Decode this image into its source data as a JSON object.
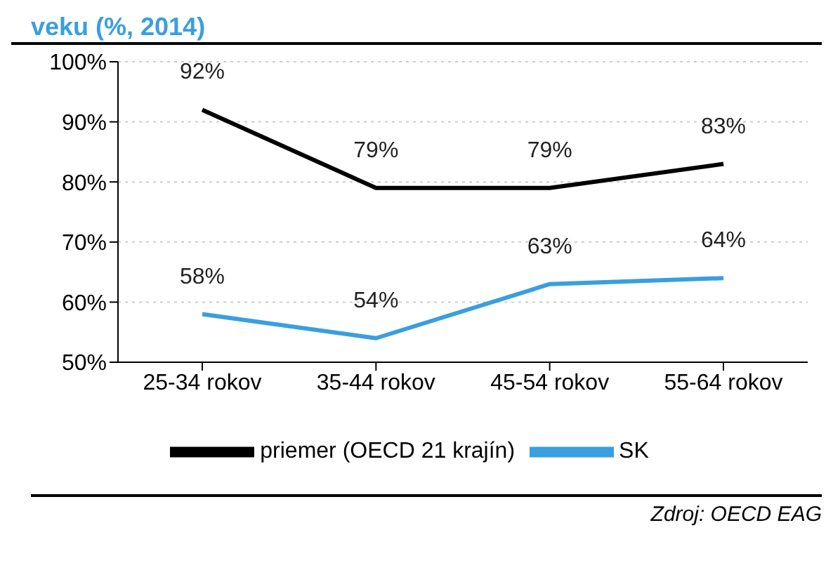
{
  "chart_data": {
    "type": "line",
    "title": "veku (%, 2014)",
    "categories": [
      "25-34 rokov",
      "35-44 rokov",
      "45-54 rokov",
      "55-64 rokov"
    ],
    "series": [
      {
        "name": "priemer (OECD 21 krajín)",
        "color": "#000000",
        "values": [
          92,
          79,
          79,
          83
        ],
        "value_labels": [
          "92%",
          "79%",
          "79%",
          "83%"
        ]
      },
      {
        "name": "SK",
        "color": "#3a9ee0",
        "values": [
          58,
          54,
          63,
          64
        ],
        "value_labels": [
          "58%",
          "54%",
          "63%",
          "64%"
        ]
      }
    ],
    "ylim": [
      50,
      100
    ],
    "yticks": [
      {
        "value": 50,
        "label": "50%"
      },
      {
        "value": 60,
        "label": "60%"
      },
      {
        "value": 70,
        "label": "70%"
      },
      {
        "value": 80,
        "label": "80%"
      },
      {
        "value": 90,
        "label": "90%"
      },
      {
        "value": 100,
        "label": "100%"
      }
    ],
    "grid": "y",
    "legend": "bottom",
    "marker": "none",
    "line_style": "solid",
    "annotations": [
      "Zdroj: OECD EAG"
    ]
  }
}
